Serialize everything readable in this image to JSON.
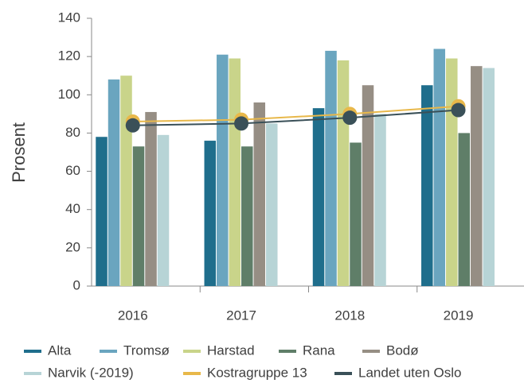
{
  "chart_data": {
    "type": "bar",
    "y_label": "Prosent",
    "categories": [
      "2016",
      "2017",
      "2018",
      "2019"
    ],
    "series": [
      {
        "name": "Alta",
        "color": "#1f6e8c",
        "values": [
          78,
          76,
          93,
          105
        ]
      },
      {
        "name": "Tromsø",
        "color": "#6aa5bf",
        "values": [
          108,
          121,
          123,
          124
        ]
      },
      {
        "name": "Harstad",
        "color": "#c9d48a",
        "values": [
          110,
          119,
          118,
          119
        ]
      },
      {
        "name": "Rana",
        "color": "#5f7e68",
        "values": [
          73,
          73,
          75,
          80
        ]
      },
      {
        "name": "Bodø",
        "color": "#968e84",
        "values": [
          91,
          96,
          105,
          115
        ]
      },
      {
        "name": "Narvik (-2019)",
        "color": "#b7d4d6",
        "values": [
          79,
          85,
          90,
          114
        ]
      },
      {
        "name": "Kostragruppe 13",
        "color": "#e8b84a",
        "type": "line",
        "values": [
          86,
          87,
          90,
          94
        ]
      },
      {
        "name": "Landet uten Oslo",
        "color": "#3a5058",
        "type": "line",
        "values": [
          84,
          85,
          88,
          92
        ]
      }
    ],
    "ylim": [
      0,
      140
    ],
    "yticks": [
      0,
      20,
      40,
      60,
      80,
      100,
      120,
      140
    ]
  }
}
